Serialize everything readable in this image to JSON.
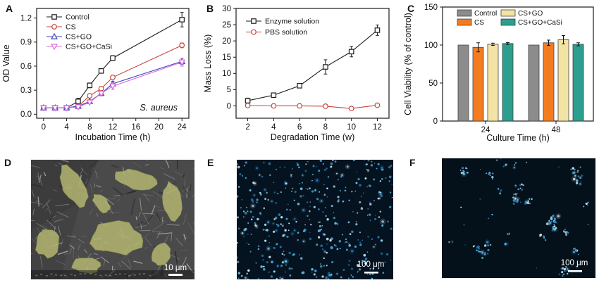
{
  "panels": {
    "A": {
      "label": "A"
    },
    "B": {
      "label": "B"
    },
    "C": {
      "label": "C"
    },
    "D": {
      "label": "D",
      "image_type": "sem-micrograph",
      "content": "cells pseudo-colored yellow-green spread on gray porous scaffold",
      "pseudo_color": "#b7ba72",
      "scale_bar_label": "10 μm"
    },
    "E": {
      "label": "E",
      "image_type": "fluorescence-micrograph",
      "content": "dense blue-stained cell nuclei on dark field",
      "cell_density": "dense",
      "dot_count": 430,
      "background_color": "#051320",
      "dot_palette": [
        "#5ec6f2",
        "#8fd9ff",
        "#3d9fd8",
        "#d6f2ff",
        "#2a7fb8"
      ],
      "scale_bar_label": "100 μm"
    },
    "F": {
      "label": "F",
      "image_type": "fluorescence-micrograph",
      "content": "sparse clusters of blue-stained cell nuclei on dark field",
      "cell_density": "sparse-clustered",
      "cluster_count": 26,
      "background_color": "#04101a",
      "dot_palette": [
        "#5ec6f2",
        "#8fd9ff",
        "#3d9fd8",
        "#d6f2ff",
        "#2a7fb8"
      ],
      "scale_bar_label": "100 μm"
    }
  },
  "chart_data": [
    {
      "panel": "A",
      "type": "line",
      "xlabel": "Incubation Time (h)",
      "ylabel": "OD Value",
      "annotation": "S. aureus",
      "legend_position": "top-left",
      "grid": false,
      "x": [
        0,
        2,
        4,
        6,
        8,
        10,
        12,
        24
      ],
      "xticks": [
        0,
        4,
        8,
        12,
        16,
        20,
        24
      ],
      "yticks": [
        "0.0",
        "0.3",
        "0.6",
        "0.9",
        "1.2"
      ],
      "xlim": [
        -1.2,
        25.2
      ],
      "ylim": [
        -0.05,
        1.32
      ],
      "series": [
        {
          "name": "Control",
          "marker": "square",
          "color": "#1c1c1c",
          "values": [
            0.08,
            0.08,
            0.08,
            0.16,
            0.36,
            0.54,
            0.7,
            1.18
          ],
          "errors": [
            0.01,
            0.01,
            0.01,
            0.04,
            0.03,
            0.02,
            0.03,
            0.09
          ]
        },
        {
          "name": "CS",
          "marker": "circle",
          "color": "#c94540",
          "values": [
            0.08,
            0.08,
            0.08,
            0.1,
            0.23,
            0.32,
            0.46,
            0.86
          ],
          "errors": [
            0.01,
            0.01,
            0.01,
            0.02,
            0.02,
            0.02,
            0.02,
            0.03
          ]
        },
        {
          "name": "CS+GO",
          "marker": "triangle-up",
          "color": "#4040c0",
          "values": [
            0.08,
            0.08,
            0.08,
            0.1,
            0.16,
            0.26,
            0.38,
            0.66
          ],
          "errors": [
            0.01,
            0.01,
            0.01,
            0.02,
            0.02,
            0.02,
            0.03,
            0.04
          ]
        },
        {
          "name": "CS+GO+CaSi",
          "marker": "triangle-down",
          "color": "#d96bd9",
          "values": [
            0.08,
            0.08,
            0.08,
            0.09,
            0.15,
            0.26,
            0.35,
            0.65
          ],
          "errors": [
            0.01,
            0.01,
            0.01,
            0.02,
            0.02,
            0.02,
            0.04,
            0.05
          ]
        }
      ]
    },
    {
      "panel": "B",
      "type": "line",
      "xlabel": "Degradation Time (w)",
      "ylabel": "Mass Loss (%)",
      "annotation": "",
      "legend_position": "top-left",
      "grid": false,
      "x": [
        2,
        4,
        6,
        8,
        10,
        12
      ],
      "xticks": [
        2,
        4,
        6,
        8,
        10,
        12
      ],
      "yticks": [
        0,
        5,
        10,
        15,
        20,
        25,
        30
      ],
      "xlim": [
        1.1,
        12.9
      ],
      "ylim": [
        -3.8,
        30
      ],
      "series": [
        {
          "name": "Enzyme solution",
          "marker": "square",
          "color": "#1c1c1c",
          "values": [
            1.6,
            3.3,
            6.2,
            12.0,
            16.7,
            23.3
          ],
          "errors": [
            0.8,
            0.5,
            0.6,
            2.2,
            1.6,
            1.6
          ]
        },
        {
          "name": "PBS solution",
          "marker": "circle",
          "color": "#c94540",
          "values": [
            0.1,
            0.0,
            0.0,
            -0.1,
            -0.8,
            0.2
          ],
          "errors": [
            0.3,
            0.25,
            0.25,
            0.3,
            0.35,
            0.3
          ]
        }
      ]
    },
    {
      "panel": "C",
      "type": "bar",
      "xlabel": "Culture Time (h)",
      "ylabel": "Cell Viability (% of control)",
      "legend_position": "top",
      "grid": false,
      "categories": [
        "24",
        "48"
      ],
      "yticks": [
        0,
        50,
        100,
        150
      ],
      "ylim": [
        0,
        150
      ],
      "series": [
        {
          "name": "Control",
          "color": "#8c8c8c",
          "values": [
            100,
            100
          ],
          "errors": [
            0.5,
            0.5
          ]
        },
        {
          "name": "CS",
          "color": "#f47c20",
          "values": [
            97,
            103
          ],
          "errors": [
            6,
            3.5
          ]
        },
        {
          "name": "CS+GO",
          "color": "#f3e3a4",
          "values": [
            101,
            107
          ],
          "errors": [
            1.5,
            5.5
          ]
        },
        {
          "name": "CS+GO+CaSi",
          "color": "#2b9e8e",
          "values": [
            102,
            101
          ],
          "errors": [
            1.2,
            2
          ]
        }
      ]
    }
  ]
}
